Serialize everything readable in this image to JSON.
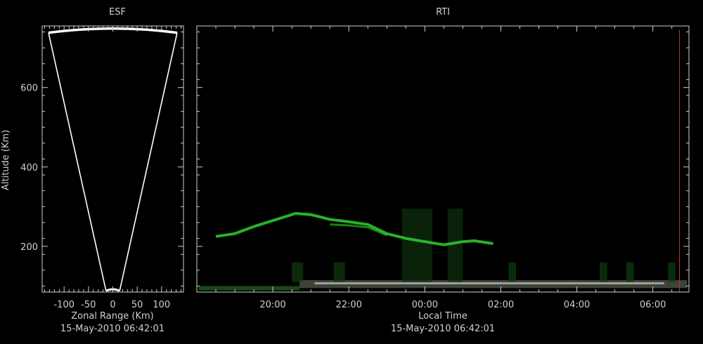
{
  "chart_data": [
    {
      "type": "scatter",
      "title": "ESF",
      "xlabel": "Zonal Range (Km)",
      "ylabel": "Altitude (Km)",
      "timestamp": "15-May-2010 06:42:01",
      "xlim": [
        -145,
        145
      ],
      "ylim": [
        85,
        755
      ],
      "x_ticks": [
        -100,
        -50,
        0,
        50,
        100
      ],
      "y_ticks": [
        200,
        400,
        600
      ],
      "fan": {
        "apex_altitude": 10,
        "inner_altitude": 90,
        "outer_altitude": 745,
        "inner_arc_x": [
          -14,
          14
        ],
        "outer_arc_x": [
          -132,
          132
        ]
      }
    },
    {
      "type": "heatmap",
      "title": "RTI",
      "xlabel": "Local Time",
      "timestamp": "15-May-2010 06:42:01",
      "xlim_hours": [
        18.0,
        30.95
      ],
      "ylim": [
        85,
        755
      ],
      "x_ticks": [
        {
          "hour": 20,
          "label": "20:00"
        },
        {
          "hour": 22,
          "label": "22:00"
        },
        {
          "hour": 24,
          "label": "00:00"
        },
        {
          "hour": 26,
          "label": "02:00"
        },
        {
          "hour": 28,
          "label": "04:00"
        },
        {
          "hour": 30,
          "label": "06:00"
        }
      ],
      "y_ticks": [
        200,
        400,
        600
      ],
      "current_time_hour": 30.7,
      "colors": {
        "layer": "#2fd12f",
        "band": "#b8b8b8",
        "cursor": "#c03030"
      },
      "layer_trace": [
        {
          "hour": 18.5,
          "alt": 225
        },
        {
          "hour": 19.0,
          "alt": 232
        },
        {
          "hour": 19.5,
          "alt": 250
        },
        {
          "hour": 19.9,
          "alt": 262
        },
        {
          "hour": 20.6,
          "alt": 283
        },
        {
          "hour": 21.0,
          "alt": 280
        },
        {
          "hour": 21.5,
          "alt": 268
        },
        {
          "hour": 22.0,
          "alt": 262
        },
        {
          "hour": 22.5,
          "alt": 255
        },
        {
          "hour": 23.0,
          "alt": 232
        },
        {
          "hour": 23.5,
          "alt": 220
        },
        {
          "hour": 24.0,
          "alt": 212
        },
        {
          "hour": 24.5,
          "alt": 204
        },
        {
          "hour": 25.0,
          "alt": 212
        },
        {
          "hour": 25.3,
          "alt": 214
        },
        {
          "hour": 25.8,
          "alt": 207
        }
      ],
      "second_trace": [
        {
          "hour": 21.5,
          "alt": 255
        },
        {
          "hour": 22.0,
          "alt": 253
        },
        {
          "hour": 22.5,
          "alt": 248
        },
        {
          "hour": 23.0,
          "alt": 228
        }
      ],
      "bottom_band": {
        "start_hour": 20.7,
        "end_hour": 30.9,
        "alt_low": 95,
        "alt_high": 115
      }
    }
  ]
}
